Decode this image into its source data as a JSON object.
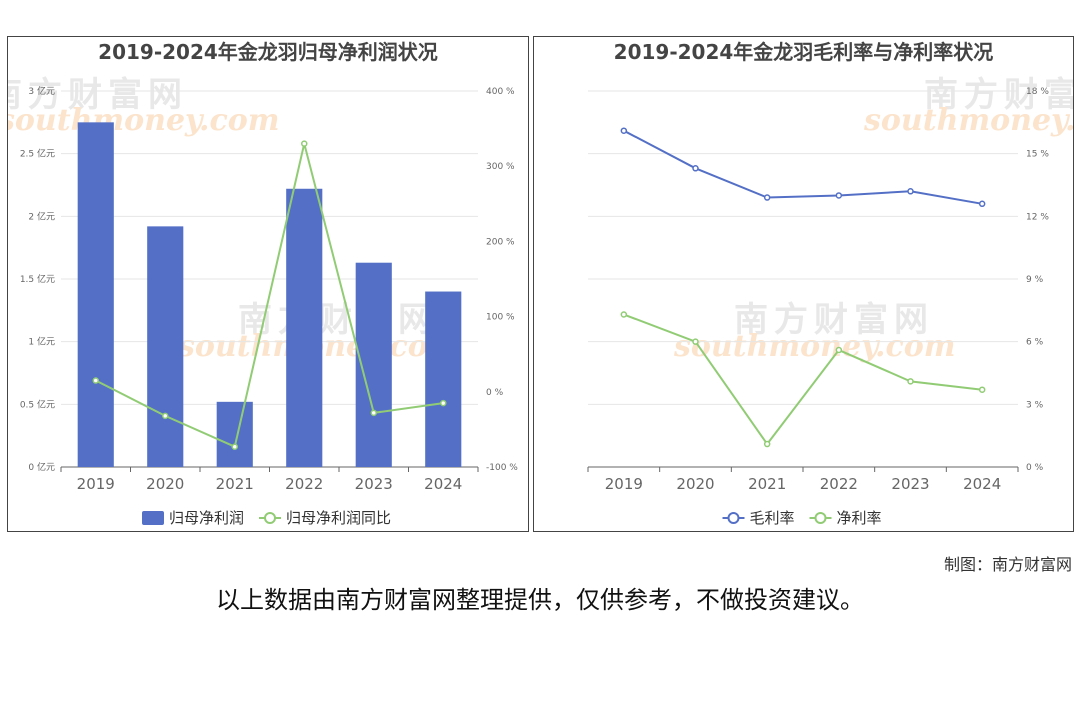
{
  "watermark": {
    "cn": "南方财富网",
    "en": "southmoney.com"
  },
  "credit": "制图：南方财富网",
  "disclaimer": "以上数据由南方财富网整理提供，仅供参考，不做投资建议。",
  "colors": {
    "blue": "#5470c6",
    "green": "#91cc75",
    "grid": "#e6e6e6",
    "axis": "#666666"
  },
  "chart_data": [
    {
      "type": "bar",
      "title": "2019-2024年金龙羽归母净利润状况",
      "categories": [
        "2019",
        "2020",
        "2021",
        "2022",
        "2023",
        "2024"
      ],
      "y_left": {
        "ticks": [
          "0 亿元",
          "0.5 亿元",
          "1 亿元",
          "1.5 亿元",
          "2 亿元",
          "2.5 亿元",
          "3 亿元"
        ],
        "ylim": [
          0,
          3
        ]
      },
      "y_right": {
        "ticks": [
          "-100 %",
          "0 %",
          "100 %",
          "200 %",
          "300 %",
          "400 %"
        ],
        "ylim": [
          -100,
          400
        ]
      },
      "series": [
        {
          "name": "归母净利润",
          "kind": "bar",
          "axis": "left",
          "values": [
            2.75,
            1.92,
            0.52,
            2.22,
            1.63,
            1.4
          ]
        },
        {
          "name": "归母净利润同比",
          "kind": "line",
          "axis": "right",
          "values": [
            15,
            -32,
            -73,
            330,
            -28,
            -15
          ]
        }
      ],
      "legend": "bottom-center",
      "grid": true
    },
    {
      "type": "line",
      "title": "2019-2024年金龙羽毛利率与净利率状况",
      "categories": [
        "2019",
        "2020",
        "2021",
        "2022",
        "2023",
        "2024"
      ],
      "y_right": {
        "ticks": [
          "0 %",
          "3 %",
          "6 %",
          "9 %",
          "12 %",
          "15 %",
          "18 %"
        ],
        "ylim": [
          0,
          18
        ]
      },
      "series": [
        {
          "name": "毛利率",
          "kind": "line",
          "axis": "right",
          "values": [
            16.1,
            14.3,
            12.9,
            13.0,
            13.2,
            12.6
          ]
        },
        {
          "name": "净利率",
          "kind": "line",
          "axis": "right",
          "values": [
            7.3,
            6.0,
            1.1,
            5.6,
            4.1,
            3.7
          ]
        }
      ],
      "legend": "bottom-center",
      "grid": true
    }
  ]
}
